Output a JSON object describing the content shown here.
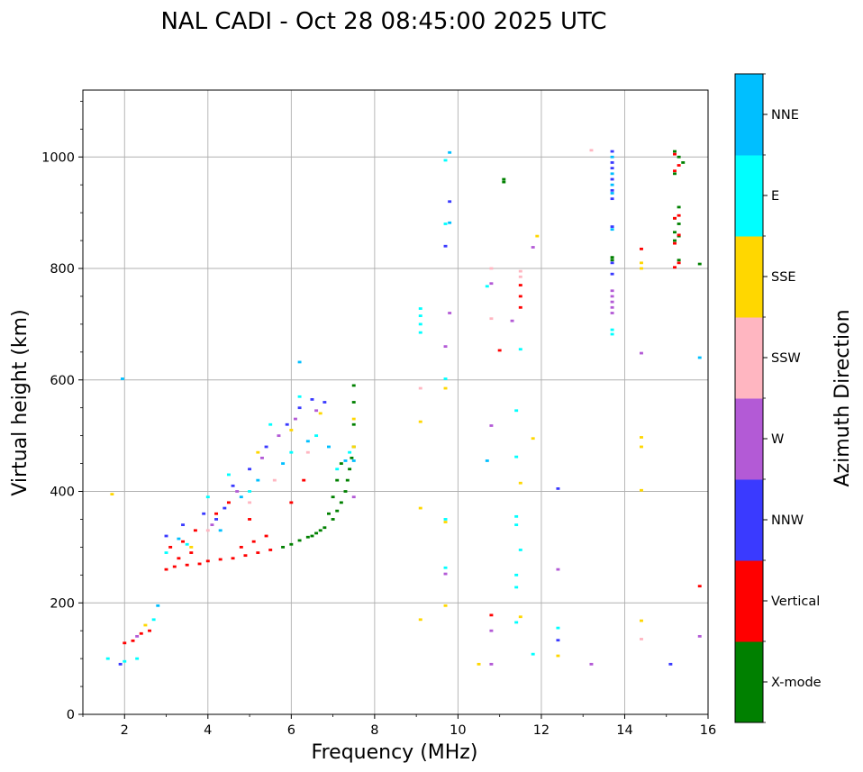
{
  "chart_data": {
    "type": "scatter",
    "title": "NAL CADI - Oct 28 08:45:00 2025 UTC",
    "xlabel": "Frequency (MHz)",
    "ylabel": "Virtual height (km)",
    "xlim": [
      1,
      16
    ],
    "ylim": [
      0,
      1120
    ],
    "xticks": [
      2,
      4,
      6,
      8,
      10,
      12,
      14,
      16
    ],
    "yticks": [
      0,
      200,
      400,
      600,
      800,
      1000
    ],
    "grid": true,
    "colorbar": {
      "label": "Azimuth Direction",
      "categories": [
        {
          "name": "X-mode",
          "color": "#008000"
        },
        {
          "name": "Vertical",
          "color": "#ff0000"
        },
        {
          "name": "NNW",
          "color": "#3a3aff"
        },
        {
          "name": "W",
          "color": "#b35ad6"
        },
        {
          "name": "SSW",
          "color": "#ffb6c1"
        },
        {
          "name": "SSE",
          "color": "#ffd700"
        },
        {
          "name": "E",
          "color": "#00ffff"
        },
        {
          "name": "NNE",
          "color": "#00bfff"
        }
      ]
    },
    "series": [
      {
        "name": "X-mode",
        "points": [
          [
            5.8,
            300
          ],
          [
            6.0,
            305
          ],
          [
            6.2,
            312
          ],
          [
            6.4,
            318
          ],
          [
            6.6,
            325
          ],
          [
            6.8,
            335
          ],
          [
            7.0,
            350
          ],
          [
            7.1,
            365
          ],
          [
            7.2,
            380
          ],
          [
            7.3,
            400
          ],
          [
            7.35,
            420
          ],
          [
            7.4,
            440
          ],
          [
            7.45,
            460
          ],
          [
            7.5,
            480
          ],
          [
            7.5,
            520
          ],
          [
            7.5,
            560
          ],
          [
            7.5,
            590
          ],
          [
            6.7,
            330
          ],
          [
            6.9,
            360
          ],
          [
            7.0,
            390
          ],
          [
            7.1,
            420
          ],
          [
            7.2,
            450
          ],
          [
            6.5,
            320
          ],
          [
            15.2,
            1010
          ],
          [
            15.3,
            1000
          ],
          [
            15.4,
            990
          ],
          [
            15.2,
            970
          ],
          [
            15.3,
            910
          ],
          [
            15.2,
            890
          ],
          [
            15.3,
            880
          ],
          [
            15.2,
            865
          ],
          [
            15.3,
            858
          ],
          [
            15.2,
            850
          ],
          [
            15.3,
            815
          ],
          [
            15.8,
            808
          ],
          [
            11.1,
            960
          ],
          [
            11.1,
            955
          ],
          [
            13.7,
            820
          ],
          [
            13.7,
            815
          ]
        ]
      },
      {
        "name": "Vertical",
        "points": [
          [
            2.0,
            128
          ],
          [
            2.2,
            132
          ],
          [
            2.4,
            145
          ],
          [
            2.6,
            150
          ],
          [
            3.0,
            260
          ],
          [
            3.2,
            265
          ],
          [
            3.5,
            268
          ],
          [
            3.8,
            270
          ],
          [
            4.0,
            275
          ],
          [
            4.3,
            278
          ],
          [
            4.6,
            280
          ],
          [
            4.9,
            285
          ],
          [
            5.2,
            290
          ],
          [
            5.5,
            295
          ],
          [
            3.1,
            300
          ],
          [
            3.4,
            310
          ],
          [
            3.7,
            330
          ],
          [
            4.2,
            360
          ],
          [
            4.5,
            380
          ],
          [
            5.0,
            350
          ],
          [
            5.4,
            320
          ],
          [
            6.0,
            380
          ],
          [
            6.3,
            420
          ],
          [
            3.3,
            280
          ],
          [
            3.6,
            290
          ],
          [
            4.8,
            300
          ],
          [
            5.1,
            310
          ],
          [
            10.8,
            178
          ],
          [
            11.5,
            770
          ],
          [
            11.5,
            750
          ],
          [
            11.5,
            730
          ],
          [
            11.0,
            653
          ],
          [
            14.4,
            835
          ],
          [
            15.2,
            1005
          ],
          [
            15.3,
            985
          ],
          [
            15.2,
            975
          ],
          [
            15.3,
            895
          ],
          [
            15.2,
            890
          ],
          [
            15.3,
            860
          ],
          [
            15.2,
            845
          ],
          [
            15.3,
            810
          ],
          [
            15.2,
            802
          ],
          [
            15.8,
            230
          ]
        ]
      },
      {
        "name": "NNW",
        "points": [
          [
            1.9,
            90
          ],
          [
            3.0,
            320
          ],
          [
            3.4,
            340
          ],
          [
            3.9,
            360
          ],
          [
            4.2,
            350
          ],
          [
            4.6,
            410
          ],
          [
            5.0,
            440
          ],
          [
            5.4,
            480
          ],
          [
            5.9,
            520
          ],
          [
            6.2,
            550
          ],
          [
            6.5,
            565
          ],
          [
            6.8,
            560
          ],
          [
            4.4,
            370
          ],
          [
            9.8,
            920
          ],
          [
            9.7,
            840
          ],
          [
            12.4,
            405
          ],
          [
            12.4,
            133
          ],
          [
            15.1,
            90
          ],
          [
            13.7,
            1010
          ],
          [
            13.7,
            990
          ],
          [
            13.7,
            980
          ],
          [
            13.7,
            960
          ],
          [
            13.7,
            940
          ],
          [
            13.7,
            925
          ],
          [
            13.7,
            875
          ],
          [
            13.7,
            810
          ],
          [
            13.7,
            790
          ]
        ]
      },
      {
        "name": "W",
        "points": [
          [
            2.3,
            140
          ],
          [
            4.1,
            340
          ],
          [
            4.7,
            400
          ],
          [
            5.3,
            460
          ],
          [
            5.7,
            500
          ],
          [
            6.1,
            530
          ],
          [
            6.6,
            545
          ],
          [
            7.5,
            390
          ],
          [
            9.8,
            720
          ],
          [
            9.7,
            660
          ],
          [
            9.7,
            252
          ],
          [
            10.8,
            773
          ],
          [
            10.8,
            518
          ],
          [
            10.8,
            90
          ],
          [
            10.8,
            150
          ],
          [
            11.3,
            706
          ],
          [
            11.8,
            838
          ],
          [
            12.4,
            260
          ],
          [
            13.2,
            90
          ],
          [
            13.7,
            760
          ],
          [
            13.7,
            750
          ],
          [
            13.7,
            740
          ],
          [
            13.7,
            730
          ],
          [
            13.7,
            720
          ],
          [
            14.4,
            648
          ],
          [
            15.8,
            140
          ]
        ]
      },
      {
        "name": "SSW",
        "points": [
          [
            4.0,
            330
          ],
          [
            5.0,
            380
          ],
          [
            5.6,
            420
          ],
          [
            6.4,
            470
          ],
          [
            9.1,
            585
          ],
          [
            10.8,
            710
          ],
          [
            11.5,
            795
          ],
          [
            11.5,
            785
          ],
          [
            13.2,
            1012
          ],
          [
            14.4,
            135
          ],
          [
            10.8,
            800
          ]
        ]
      },
      {
        "name": "SSE",
        "points": [
          [
            1.7,
            395
          ],
          [
            2.5,
            160
          ],
          [
            3.6,
            300
          ],
          [
            5.2,
            470
          ],
          [
            6.0,
            510
          ],
          [
            6.7,
            540
          ],
          [
            7.5,
            530
          ],
          [
            7.5,
            480
          ],
          [
            9.1,
            525
          ],
          [
            9.1,
            370
          ],
          [
            9.1,
            170
          ],
          [
            9.7,
            345
          ],
          [
            9.7,
            585
          ],
          [
            9.7,
            195
          ],
          [
            10.5,
            90
          ],
          [
            11.5,
            415
          ],
          [
            11.5,
            175
          ],
          [
            11.8,
            495
          ],
          [
            11.9,
            858
          ],
          [
            12.4,
            105
          ],
          [
            14.4,
            810
          ],
          [
            14.4,
            800
          ],
          [
            14.4,
            497
          ],
          [
            14.4,
            480
          ],
          [
            14.4,
            402
          ],
          [
            14.4,
            168
          ]
        ]
      },
      {
        "name": "E",
        "points": [
          [
            1.6,
            100
          ],
          [
            2.0,
            95
          ],
          [
            2.3,
            100
          ],
          [
            2.7,
            170
          ],
          [
            3.0,
            290
          ],
          [
            3.5,
            305
          ],
          [
            4.0,
            390
          ],
          [
            4.5,
            430
          ],
          [
            5.0,
            400
          ],
          [
            5.5,
            520
          ],
          [
            6.0,
            470
          ],
          [
            6.6,
            500
          ],
          [
            7.1,
            440
          ],
          [
            7.4,
            470
          ],
          [
            6.2,
            570
          ],
          [
            9.1,
            728
          ],
          [
            9.1,
            715
          ],
          [
            9.1,
            700
          ],
          [
            9.1,
            685
          ],
          [
            9.7,
            994
          ],
          [
            9.7,
            880
          ],
          [
            9.7,
            602
          ],
          [
            9.7,
            263
          ],
          [
            10.7,
            768
          ],
          [
            11.4,
            545
          ],
          [
            11.4,
            462
          ],
          [
            11.4,
            355
          ],
          [
            11.4,
            340
          ],
          [
            11.4,
            250
          ],
          [
            11.4,
            228
          ],
          [
            11.4,
            165
          ],
          [
            11.5,
            295
          ],
          [
            11.5,
            655
          ],
          [
            11.8,
            108
          ],
          [
            12.4,
            155
          ],
          [
            9.7,
            350
          ],
          [
            13.7,
            690
          ],
          [
            13.7,
            682
          ]
        ]
      },
      {
        "name": "NNE",
        "points": [
          [
            1.95,
            602
          ],
          [
            2.8,
            195
          ],
          [
            3.3,
            315
          ],
          [
            4.3,
            330
          ],
          [
            4.8,
            390
          ],
          [
            5.2,
            420
          ],
          [
            5.8,
            450
          ],
          [
            6.2,
            632
          ],
          [
            6.4,
            490
          ],
          [
            6.9,
            480
          ],
          [
            7.3,
            455
          ],
          [
            7.5,
            455
          ],
          [
            9.8,
            1008
          ],
          [
            9.8,
            882
          ],
          [
            10.7,
            455
          ],
          [
            13.7,
            1000
          ],
          [
            13.7,
            970
          ],
          [
            13.7,
            950
          ],
          [
            13.7,
            935
          ],
          [
            13.7,
            870
          ],
          [
            15.8,
            640
          ]
        ]
      }
    ]
  }
}
